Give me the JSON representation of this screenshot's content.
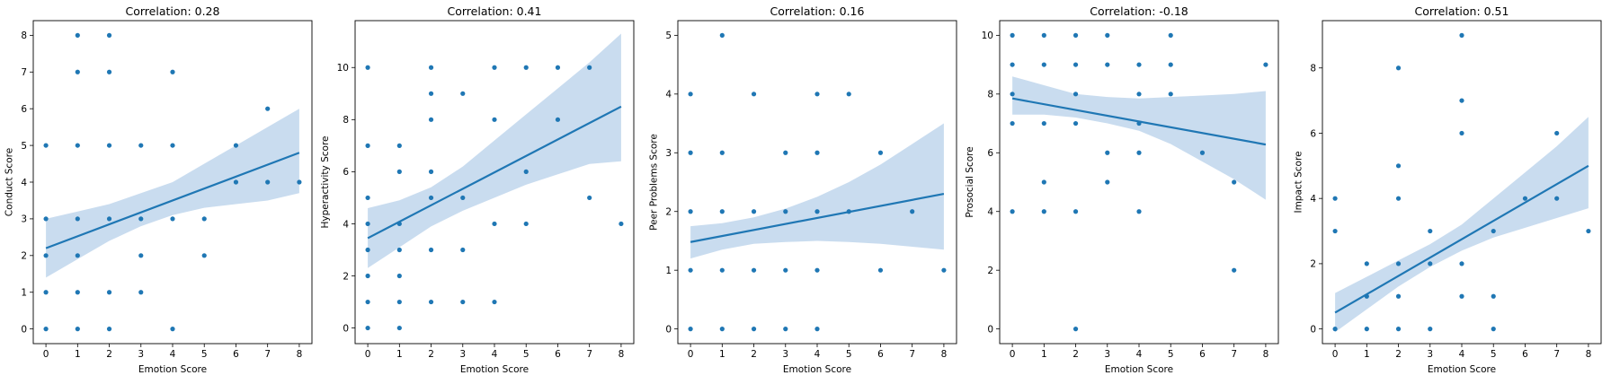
{
  "chart_data": [
    {
      "type": "scatter",
      "title": "Correlation: 0.28",
      "xlabel": "Emotion Score",
      "ylabel": "Conduct Score",
      "xlim": [
        -0.4,
        8.4
      ],
      "ylim": [
        -0.4,
        8.4
      ],
      "xticks": [
        "0",
        "1",
        "2",
        "3",
        "4",
        "5",
        "6",
        "7",
        "8"
      ],
      "yticks": [
        "0",
        "1",
        "2",
        "3",
        "4",
        "5",
        "6",
        "7",
        "8"
      ],
      "points": [
        [
          0,
          0
        ],
        [
          0,
          2
        ],
        [
          0,
          3
        ],
        [
          0,
          5
        ],
        [
          0,
          1
        ],
        [
          1,
          0
        ],
        [
          1,
          1
        ],
        [
          1,
          2
        ],
        [
          1,
          3
        ],
        [
          1,
          5
        ],
        [
          1,
          7
        ],
        [
          1,
          8
        ],
        [
          2,
          0
        ],
        [
          2,
          1
        ],
        [
          2,
          3
        ],
        [
          2,
          5
        ],
        [
          2,
          7
        ],
        [
          2,
          8
        ],
        [
          3,
          1
        ],
        [
          3,
          2
        ],
        [
          3,
          3
        ],
        [
          3,
          5
        ],
        [
          4,
          0
        ],
        [
          4,
          3
        ],
        [
          4,
          5
        ],
        [
          4,
          7
        ],
        [
          5,
          2
        ],
        [
          5,
          3
        ],
        [
          6,
          4
        ],
        [
          6,
          5
        ],
        [
          7,
          4
        ],
        [
          7,
          6
        ],
        [
          8,
          4
        ]
      ],
      "regression": {
        "x": [
          0,
          8
        ],
        "y": [
          2.2,
          4.8
        ]
      },
      "ci_lower": [
        [
          0,
          1.4
        ],
        [
          1,
          1.9
        ],
        [
          2,
          2.4
        ],
        [
          3,
          2.8
        ],
        [
          4,
          3.1
        ],
        [
          5,
          3.3
        ],
        [
          6,
          3.4
        ],
        [
          7,
          3.5
        ],
        [
          8,
          3.7
        ]
      ],
      "ci_upper": [
        [
          0,
          3.0
        ],
        [
          1,
          3.2
        ],
        [
          2,
          3.4
        ],
        [
          3,
          3.7
        ],
        [
          4,
          4.0
        ],
        [
          5,
          4.5
        ],
        [
          6,
          5.0
        ],
        [
          7,
          5.5
        ],
        [
          8,
          6.0
        ]
      ],
      "color": "#1f77b4",
      "ci_color": "#c9dcef",
      "grid": false
    },
    {
      "type": "scatter",
      "title": "Correlation: 0.41",
      "xlabel": "Emotion Score",
      "ylabel": "Hyperactivity Score",
      "xlim": [
        -0.4,
        8.4
      ],
      "ylim": [
        -0.6,
        11.8
      ],
      "xticks": [
        "0",
        "1",
        "2",
        "3",
        "4",
        "5",
        "6",
        "7",
        "8"
      ],
      "yticks": [
        "0",
        "2",
        "4",
        "6",
        "8",
        "10"
      ],
      "points": [
        [
          0,
          0
        ],
        [
          0,
          1
        ],
        [
          0,
          2
        ],
        [
          0,
          3
        ],
        [
          0,
          4
        ],
        [
          0,
          5
        ],
        [
          0,
          7
        ],
        [
          0,
          10
        ],
        [
          1,
          0
        ],
        [
          1,
          1
        ],
        [
          1,
          2
        ],
        [
          1,
          3
        ],
        [
          1,
          4
        ],
        [
          1,
          6
        ],
        [
          1,
          7
        ],
        [
          2,
          1
        ],
        [
          2,
          3
        ],
        [
          2,
          5
        ],
        [
          2,
          6
        ],
        [
          2,
          8
        ],
        [
          2,
          9
        ],
        [
          2,
          10
        ],
        [
          3,
          1
        ],
        [
          3,
          3
        ],
        [
          3,
          5
        ],
        [
          3,
          9
        ],
        [
          4,
          1
        ],
        [
          4,
          4
        ],
        [
          4,
          8
        ],
        [
          4,
          10
        ],
        [
          5,
          4
        ],
        [
          5,
          6
        ],
        [
          5,
          10
        ],
        [
          6,
          8
        ],
        [
          6,
          10
        ],
        [
          7,
          5
        ],
        [
          7,
          10
        ],
        [
          8,
          4
        ]
      ],
      "regression": {
        "x": [
          0,
          8
        ],
        "y": [
          3.45,
          8.5
        ]
      },
      "ci_lower": [
        [
          0,
          2.3
        ],
        [
          1,
          3.1
        ],
        [
          2,
          3.9
        ],
        [
          3,
          4.5
        ],
        [
          4,
          5.0
        ],
        [
          5,
          5.5
        ],
        [
          6,
          5.9
        ],
        [
          7,
          6.3
        ],
        [
          8,
          6.4
        ]
      ],
      "ci_upper": [
        [
          0,
          4.6
        ],
        [
          1,
          4.9
        ],
        [
          2,
          5.4
        ],
        [
          3,
          6.2
        ],
        [
          4,
          7.2
        ],
        [
          5,
          8.2
        ],
        [
          6,
          9.2
        ],
        [
          7,
          10.2
        ],
        [
          8,
          11.3
        ]
      ],
      "color": "#1f77b4",
      "ci_color": "#c9dcef",
      "grid": false
    },
    {
      "type": "scatter",
      "title": "Correlation: 0.16",
      "xlabel": "Emotion Score",
      "ylabel": "Peer Problems Score",
      "xlim": [
        -0.4,
        8.4
      ],
      "ylim": [
        -0.25,
        5.25
      ],
      "xticks": [
        "0",
        "1",
        "2",
        "3",
        "4",
        "5",
        "6",
        "7",
        "8"
      ],
      "yticks": [
        "0",
        "1",
        "2",
        "3",
        "4",
        "5"
      ],
      "points": [
        [
          0,
          0
        ],
        [
          0,
          1
        ],
        [
          0,
          2
        ],
        [
          0,
          3
        ],
        [
          0,
          4
        ],
        [
          1,
          0
        ],
        [
          1,
          1
        ],
        [
          1,
          2
        ],
        [
          1,
          3
        ],
        [
          1,
          5
        ],
        [
          2,
          0
        ],
        [
          2,
          1
        ],
        [
          2,
          2
        ],
        [
          2,
          4
        ],
        [
          3,
          0
        ],
        [
          3,
          1
        ],
        [
          3,
          2
        ],
        [
          3,
          3
        ],
        [
          4,
          0
        ],
        [
          4,
          1
        ],
        [
          4,
          2
        ],
        [
          4,
          3
        ],
        [
          4,
          4
        ],
        [
          5,
          2
        ],
        [
          5,
          4
        ],
        [
          6,
          1
        ],
        [
          6,
          3
        ],
        [
          7,
          2
        ],
        [
          8,
          1
        ]
      ],
      "regression": {
        "x": [
          0,
          8
        ],
        "y": [
          1.48,
          2.3
        ]
      },
      "ci_lower": [
        [
          0,
          1.2
        ],
        [
          1,
          1.35
        ],
        [
          2,
          1.45
        ],
        [
          3,
          1.48
        ],
        [
          4,
          1.5
        ],
        [
          5,
          1.48
        ],
        [
          6,
          1.45
        ],
        [
          7,
          1.4
        ],
        [
          8,
          1.35
        ]
      ],
      "ci_upper": [
        [
          0,
          1.75
        ],
        [
          1,
          1.8
        ],
        [
          2,
          1.9
        ],
        [
          3,
          2.05
        ],
        [
          4,
          2.25
        ],
        [
          5,
          2.5
        ],
        [
          6,
          2.8
        ],
        [
          7,
          3.15
        ],
        [
          8,
          3.5
        ]
      ],
      "color": "#1f77b4",
      "ci_color": "#c9dcef",
      "grid": false
    },
    {
      "type": "scatter",
      "title": "Correlation: -0.18",
      "xlabel": "Emotion Score",
      "ylabel": "Prosocial Score",
      "xlim": [
        -0.4,
        8.4
      ],
      "ylim": [
        -0.5,
        10.5
      ],
      "xticks": [
        "0",
        "1",
        "2",
        "3",
        "4",
        "5",
        "6",
        "7",
        "8"
      ],
      "yticks": [
        "0",
        "2",
        "4",
        "6",
        "8",
        "10"
      ],
      "points": [
        [
          0,
          4
        ],
        [
          0,
          7
        ],
        [
          0,
          8
        ],
        [
          0,
          9
        ],
        [
          0,
          10
        ],
        [
          1,
          4
        ],
        [
          1,
          5
        ],
        [
          1,
          7
        ],
        [
          1,
          9
        ],
        [
          1,
          10
        ],
        [
          2,
          0
        ],
        [
          2,
          4
        ],
        [
          2,
          7
        ],
        [
          2,
          8
        ],
        [
          2,
          9
        ],
        [
          2,
          10
        ],
        [
          3,
          5
        ],
        [
          3,
          6
        ],
        [
          3,
          9
        ],
        [
          3,
          10
        ],
        [
          4,
          4
        ],
        [
          4,
          6
        ],
        [
          4,
          7
        ],
        [
          4,
          8
        ],
        [
          4,
          9
        ],
        [
          5,
          8
        ],
        [
          5,
          9
        ],
        [
          5,
          10
        ],
        [
          6,
          6
        ],
        [
          7,
          2
        ],
        [
          7,
          5
        ],
        [
          8,
          9
        ]
      ],
      "regression": {
        "x": [
          0,
          8
        ],
        "y": [
          7.85,
          6.28
        ]
      },
      "ci_lower": [
        [
          0,
          7.3
        ],
        [
          1,
          7.3
        ],
        [
          2,
          7.2
        ],
        [
          3,
          7.0
        ],
        [
          4,
          6.75
        ],
        [
          5,
          6.3
        ],
        [
          6,
          5.7
        ],
        [
          7,
          5.1
        ],
        [
          8,
          4.4
        ]
      ],
      "ci_upper": [
        [
          0,
          8.6
        ],
        [
          1,
          8.3
        ],
        [
          2,
          8.0
        ],
        [
          3,
          7.9
        ],
        [
          4,
          7.85
        ],
        [
          5,
          7.9
        ],
        [
          6,
          7.95
        ],
        [
          7,
          8.0
        ],
        [
          8,
          8.1
        ]
      ],
      "color": "#1f77b4",
      "ci_color": "#c9dcef",
      "grid": false
    },
    {
      "type": "scatter",
      "title": "Correlation: 0.51",
      "xlabel": "Emotion Score",
      "ylabel": "Impact Score",
      "xlim": [
        -0.4,
        8.4
      ],
      "ylim": [
        -0.45,
        9.45
      ],
      "xticks": [
        "0",
        "1",
        "2",
        "3",
        "4",
        "5",
        "6",
        "7",
        "8"
      ],
      "yticks": [
        "0",
        "2",
        "4",
        "6",
        "8"
      ],
      "points": [
        [
          0,
          0
        ],
        [
          0,
          3
        ],
        [
          0,
          4
        ],
        [
          1,
          0
        ],
        [
          1,
          1
        ],
        [
          1,
          2
        ],
        [
          2,
          0
        ],
        [
          2,
          1
        ],
        [
          2,
          2
        ],
        [
          2,
          4
        ],
        [
          2,
          5
        ],
        [
          2,
          8
        ],
        [
          3,
          0
        ],
        [
          3,
          2
        ],
        [
          3,
          3
        ],
        [
          4,
          1
        ],
        [
          4,
          2
        ],
        [
          4,
          6
        ],
        [
          4,
          7
        ],
        [
          4,
          9
        ],
        [
          5,
          0
        ],
        [
          5,
          1
        ],
        [
          5,
          3
        ],
        [
          6,
          4
        ],
        [
          7,
          4
        ],
        [
          7,
          6
        ],
        [
          8,
          3
        ]
      ],
      "regression": {
        "x": [
          0,
          8
        ],
        "y": [
          0.5,
          5.0
        ]
      },
      "ci_lower": [
        [
          0,
          -0.1
        ],
        [
          1,
          0.6
        ],
        [
          2,
          1.3
        ],
        [
          3,
          1.9
        ],
        [
          4,
          2.4
        ],
        [
          5,
          2.8
        ],
        [
          6,
          3.1
        ],
        [
          7,
          3.4
        ],
        [
          8,
          3.7
        ]
      ],
      "ci_upper": [
        [
          0,
          1.1
        ],
        [
          1,
          1.6
        ],
        [
          2,
          2.1
        ],
        [
          3,
          2.6
        ],
        [
          4,
          3.2
        ],
        [
          5,
          4.0
        ],
        [
          6,
          4.8
        ],
        [
          7,
          5.6
        ],
        [
          8,
          6.5
        ]
      ],
      "color": "#1f77b4",
      "ci_color": "#c9dcef",
      "grid": false
    }
  ]
}
